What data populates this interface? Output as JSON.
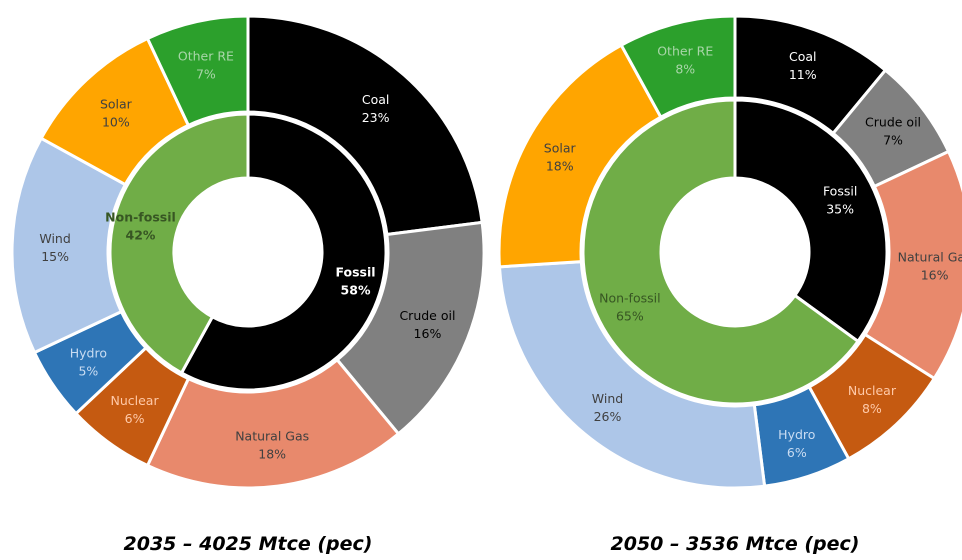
{
  "chart_data": [
    {
      "type": "pie",
      "caption": "2035 – 4025 Mtce (pec)",
      "inner_ring": [
        {
          "name": "Fossil",
          "label": "58%",
          "value": 58,
          "color": "#000000",
          "text_color": "#ffffff",
          "bold": true
        },
        {
          "name": "Non-fossil",
          "label": "42%",
          "value": 42,
          "color": "#70ad47",
          "text_color": "#375623",
          "bold": true
        }
      ],
      "outer_ring": [
        {
          "name": "Coal",
          "label": "23%",
          "value": 23,
          "color": "#000000",
          "text_color": "#ffffff"
        },
        {
          "name": "Crude oil",
          "label": "16%",
          "value": 16,
          "color": "#808080",
          "text_color": "#000000"
        },
        {
          "name": "Natural Gas",
          "label": "18%",
          "value": 18,
          "color": "#e8896c",
          "text_color": "#404040"
        },
        {
          "name": "Nuclear",
          "label": "6%",
          "value": 6,
          "color": "#c55a11",
          "text_color": "#ffc9a8"
        },
        {
          "name": "Hydro",
          "label": "5%",
          "value": 5,
          "color": "#2e75b6",
          "text_color": "#c9dcf2"
        },
        {
          "name": "Wind",
          "label": "15%",
          "value": 15,
          "color": "#adc6e8",
          "text_color": "#404040"
        },
        {
          "name": "Solar",
          "label": "10%",
          "value": 10,
          "color": "#ffa500",
          "text_color": "#404040"
        },
        {
          "name": "Other RE",
          "label": "7%",
          "value": 7,
          "color": "#2ca02c",
          "text_color": "#a9d6a9"
        }
      ]
    },
    {
      "type": "pie",
      "caption": "2050 – 3536 Mtce (pec)",
      "inner_ring": [
        {
          "name": "Fossil",
          "label": "35%",
          "value": 35,
          "color": "#000000",
          "text_color": "#ffffff",
          "bold": false
        },
        {
          "name": "Non-fossil",
          "label": "65%",
          "value": 65,
          "color": "#70ad47",
          "text_color": "#375623",
          "bold": false
        }
      ],
      "outer_ring": [
        {
          "name": "Coal",
          "label": "11%",
          "value": 11,
          "color": "#000000",
          "text_color": "#ffffff"
        },
        {
          "name": "Crude oil",
          "label": "7%",
          "value": 7,
          "color": "#808080",
          "text_color": "#000000"
        },
        {
          "name": "Natural Gas",
          "label": "16%",
          "value": 16,
          "color": "#e8896c",
          "text_color": "#404040"
        },
        {
          "name": "Nuclear",
          "label": "8%",
          "value": 8,
          "color": "#c55a11",
          "text_color": "#ffc9a8"
        },
        {
          "name": "Hydro",
          "label": "6%",
          "value": 6,
          "color": "#2e75b6",
          "text_color": "#c9dcf2"
        },
        {
          "name": "Wind",
          "label": "26%",
          "value": 26,
          "color": "#adc6e8",
          "text_color": "#404040"
        },
        {
          "name": "Solar",
          "label": "18%",
          "value": 18,
          "color": "#ffa500",
          "text_color": "#404040"
        },
        {
          "name": "Other RE",
          "label": "8%",
          "value": 8,
          "color": "#2ca02c",
          "text_color": "#a9d6a9"
        }
      ]
    }
  ]
}
